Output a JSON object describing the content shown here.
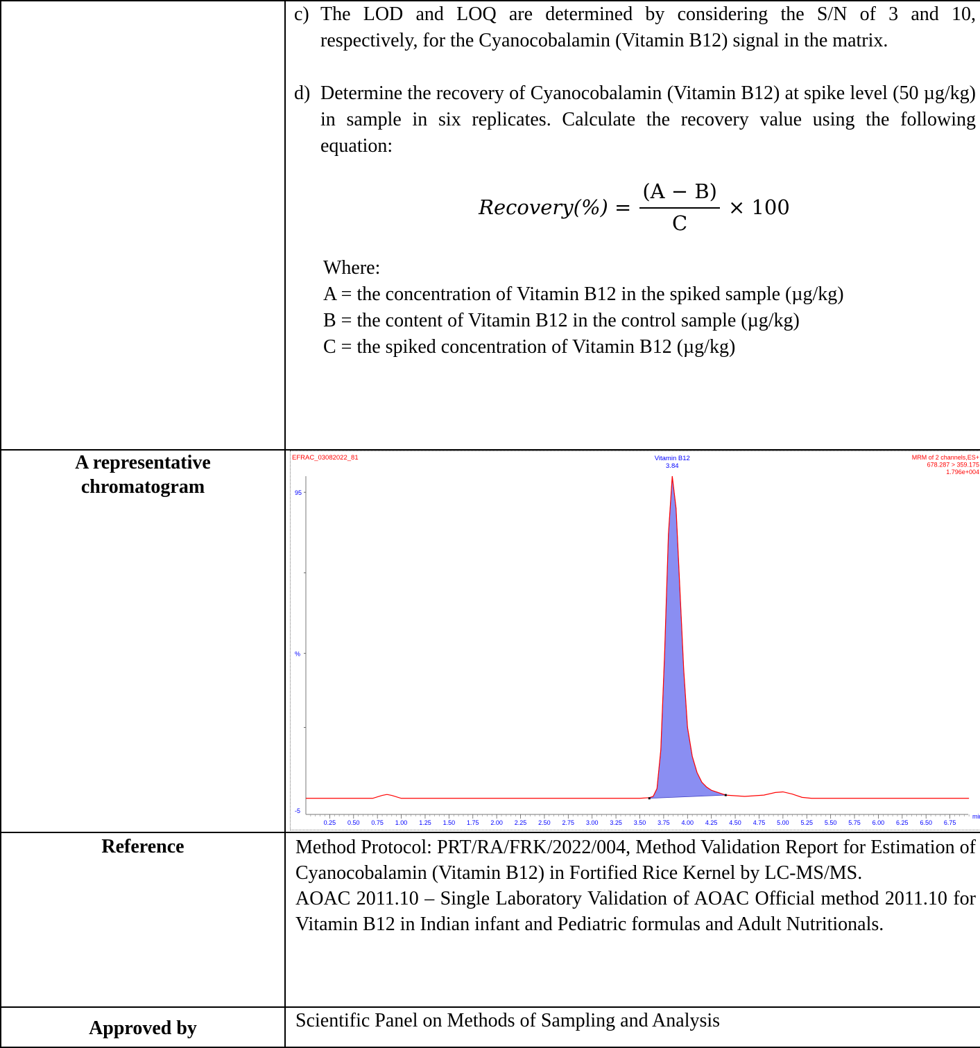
{
  "method": {
    "item_c_marker": "c)",
    "item_c": "The LOD and LOQ are determined by considering the S/N of 3 and 10, respectively, for the Cyanocobalamin (Vitamin B12) signal in the matrix.",
    "item_d_marker": "d)",
    "item_d": "Determine the recovery of Cyanocobalamin (Vitamin B12) at spike level (50 µg/kg) in sample in six replicates. Calculate the recovery value using the following equation:",
    "equation": {
      "lhs": "Recovery(%) =",
      "numerator": "(A − B)",
      "denominator": "C",
      "rhs": "× 100"
    },
    "where_label": "Where:",
    "definitions": [
      "A = the concentration of Vitamin B12 in the spiked sample (µg/kg)",
      "B = the content of Vitamin B12 in the control sample (µg/kg)",
      "C = the spiked concentration of Vitamin B12 (µg/kg)"
    ]
  },
  "chromatogram_row": {
    "label": "A representative chromatogram"
  },
  "chart_data": {
    "type": "line",
    "sample_id": "EFRAC_03082022_81",
    "peak_label": "Vitamin B12",
    "peak_rt": "3.84",
    "channel_info": [
      "MRM of 2 channels,ES+",
      "678.287 > 359.175",
      "1.796e+004"
    ],
    "x_unit": "min",
    "y_label": "%",
    "y_ticks": [
      "95",
      "-5"
    ],
    "x_ticks": [
      "0.25",
      "0.50",
      "0.75",
      "1.00",
      "1.25",
      "1.50",
      "1.75",
      "2.00",
      "2.25",
      "2.50",
      "2.75",
      "3.00",
      "3.25",
      "3.50",
      "3.75",
      "4.00",
      "4.25",
      "4.50",
      "4.75",
      "5.00",
      "5.25",
      "5.50",
      "5.75",
      "6.00",
      "6.25",
      "6.50",
      "6.75"
    ],
    "xlim": [
      0,
      7.0
    ],
    "ylim": [
      -5,
      100
    ],
    "trace": [
      [
        0.0,
        0
      ],
      [
        0.7,
        0
      ],
      [
        0.8,
        0.9
      ],
      [
        0.85,
        1.2
      ],
      [
        0.9,
        0.9
      ],
      [
        1.0,
        0
      ],
      [
        3.5,
        0
      ],
      [
        3.6,
        0.2
      ],
      [
        3.64,
        0.6
      ],
      [
        3.68,
        3
      ],
      [
        3.72,
        15
      ],
      [
        3.76,
        45
      ],
      [
        3.8,
        82
      ],
      [
        3.84,
        100
      ],
      [
        3.88,
        90
      ],
      [
        3.92,
        65
      ],
      [
        3.96,
        40
      ],
      [
        4.0,
        22
      ],
      [
        4.05,
        13
      ],
      [
        4.1,
        8
      ],
      [
        4.15,
        5
      ],
      [
        4.2,
        3.5
      ],
      [
        4.25,
        2.5
      ],
      [
        4.3,
        2
      ],
      [
        4.4,
        1.0
      ],
      [
        4.6,
        0.6
      ],
      [
        4.8,
        1.0
      ],
      [
        4.92,
        1.8
      ],
      [
        5.0,
        2.0
      ],
      [
        5.1,
        1.3
      ],
      [
        5.2,
        0.3
      ],
      [
        5.3,
        0
      ],
      [
        6.95,
        0
      ]
    ],
    "peak_integration": {
      "start": 3.6,
      "end": 4.4,
      "color": "#8a8ef2"
    },
    "trace_color": "#ff0000",
    "axis_label_color": "#0000ff"
  },
  "reference": {
    "label": "Reference",
    "lines": [
      "Method Protocol: PRT/RA/FRK/2022/004, Method Validation Report for Estimation of Cyanocobalamin (Vitamin B12) in Fortified Rice Kernel by LC-MS/MS.",
      "AOAC 2011.10 – Single Laboratory Validation of AOAC Official method 2011.10 for Vitamin B12 in Indian infant and Pediatric formulas and Adult Nutritionals."
    ]
  },
  "approval": {
    "label": "Approved by",
    "value": "Scientific Panel on Methods of Sampling and Analysis"
  }
}
